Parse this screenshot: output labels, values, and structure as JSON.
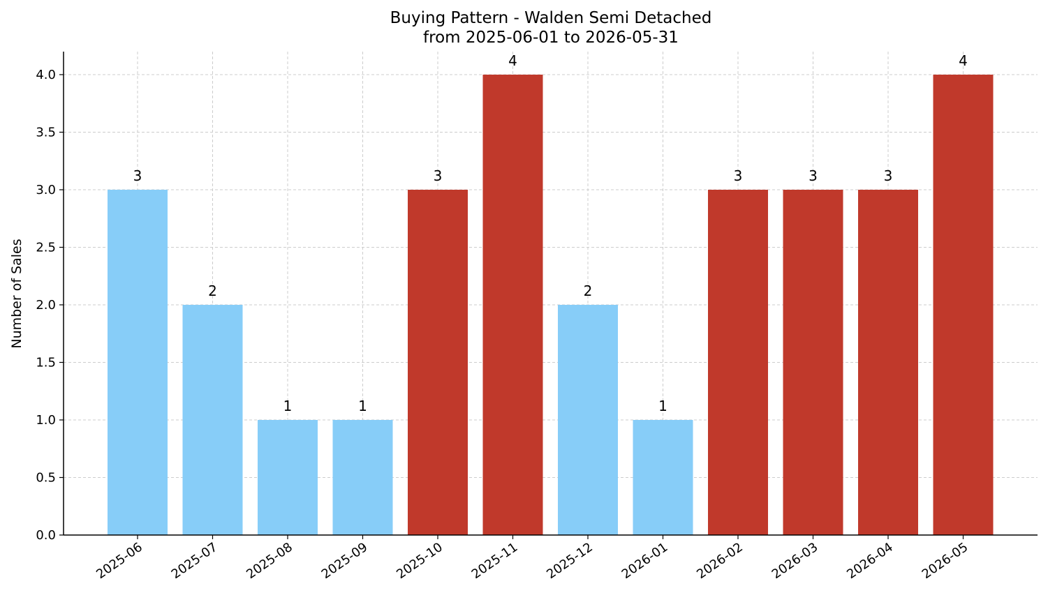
{
  "chart_data": {
    "type": "bar",
    "title_line1": "Buying Pattern - Walden Semi Detached",
    "title_line2": "from 2025-06-01 to 2026-05-31",
    "xlabel": "",
    "ylabel": "Number of Sales",
    "categories": [
      "2025-06",
      "2025-07",
      "2025-08",
      "2025-09",
      "2025-10",
      "2025-11",
      "2025-12",
      "2026-01",
      "2026-02",
      "2026-03",
      "2026-04",
      "2026-05"
    ],
    "values": [
      3,
      2,
      1,
      1,
      3,
      4,
      2,
      1,
      3,
      3,
      3,
      4
    ],
    "bar_colors": [
      "#87cdf8",
      "#87cdf8",
      "#87cdf8",
      "#87cdf8",
      "#c0392b",
      "#c0392b",
      "#87cdf8",
      "#87cdf8",
      "#c0392b",
      "#c0392b",
      "#c0392b",
      "#c0392b"
    ],
    "ylim": [
      0,
      4.2
    ],
    "yticks": [
      "0.0",
      "0.5",
      "1.0",
      "1.5",
      "2.0",
      "2.5",
      "3.0",
      "3.5",
      "4.0"
    ],
    "grid": true,
    "legend": "none"
  }
}
